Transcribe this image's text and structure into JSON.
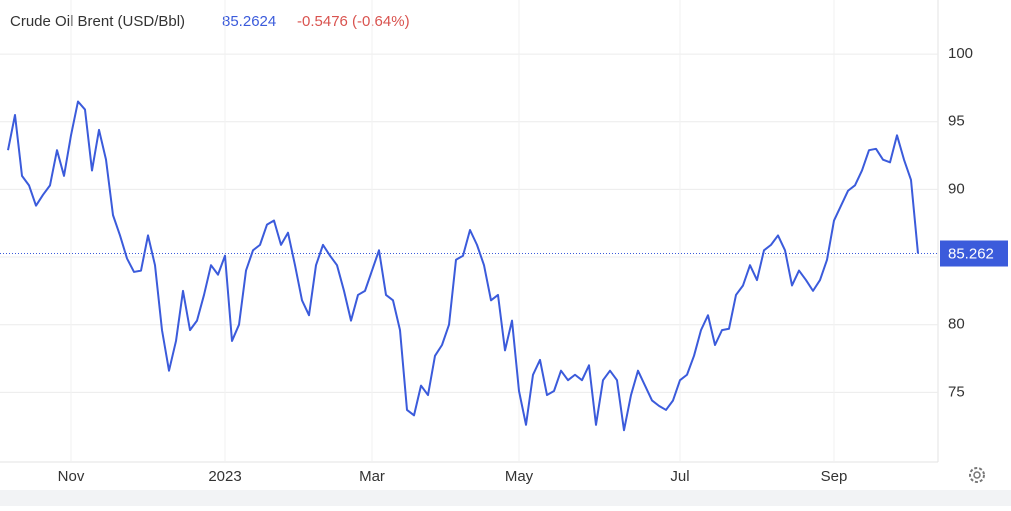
{
  "chart_data": {
    "type": "line",
    "title": "Crude Oil Brent (USD/Bbl)",
    "price": "85.2624",
    "change": "-0.5476 (-0.64%)",
    "last_label": "85.262",
    "categories": [
      null,
      null,
      null,
      null,
      null,
      null,
      null,
      null,
      null,
      "Nov",
      null,
      null,
      null,
      null,
      null,
      null,
      null,
      null,
      null,
      null,
      null,
      null,
      null,
      null,
      null,
      null,
      null,
      null,
      null,
      null,
      null,
      "2023",
      null,
      null,
      null,
      null,
      null,
      null,
      null,
      null,
      null,
      null,
      null,
      null,
      null,
      null,
      null,
      null,
      null,
      null,
      null,
      null,
      "Mar",
      null,
      null,
      null,
      null,
      null,
      null,
      null,
      null,
      null,
      null,
      null,
      null,
      null,
      null,
      null,
      null,
      null,
      null,
      null,
      null,
      "May",
      null,
      null,
      null,
      null,
      null,
      null,
      null,
      null,
      null,
      null,
      null,
      null,
      null,
      null,
      null,
      null,
      null,
      null,
      null,
      null,
      null,
      null,
      "Jul",
      null,
      null,
      null,
      null,
      null,
      null,
      null,
      null,
      null,
      null,
      null,
      null,
      null,
      null,
      null,
      null,
      null,
      null,
      null,
      null,
      null,
      "Sep",
      null,
      null,
      null,
      null,
      null,
      null,
      null,
      null,
      null,
      null,
      null,
      null
    ],
    "series": [
      {
        "name": "Crude Oil Brent (USD/Bbl)",
        "color": "#3b5bdb",
        "values": [
          92.9,
          95.5,
          91,
          90.3,
          88.8,
          89.6,
          90.3,
          92.9,
          91,
          94,
          96.5,
          95.9,
          91.4,
          94.4,
          92.2,
          88.1,
          86.6,
          84.9,
          83.9,
          84,
          86.6,
          84.4,
          79.6,
          76.6,
          78.8,
          82.5,
          79.6,
          80.3,
          82.2,
          84.4,
          83.7,
          85.1,
          78.8,
          80,
          84,
          85.5,
          85.9,
          87.4,
          87.7,
          85.9,
          86.8,
          84.4,
          81.8,
          80.7,
          84.4,
          85.9,
          85.1,
          84.4,
          82.5,
          80.3,
          82.2,
          82.5,
          84,
          85.5,
          82.2,
          81.8,
          79.6,
          73.7,
          73.3,
          75.5,
          74.8,
          77.7,
          78.5,
          80,
          84.8,
          85.1,
          87,
          85.9,
          84.4,
          81.8,
          82.2,
          78.1,
          80.3,
          75.1,
          72.6,
          76.3,
          77.4,
          74.8,
          75.1,
          76.6,
          75.9,
          76.3,
          75.9,
          77,
          72.6,
          75.9,
          76.6,
          75.9,
          72.2,
          74.8,
          76.6,
          75.5,
          74.4,
          74,
          73.7,
          74.4,
          75.9,
          76.3,
          77.7,
          79.6,
          80.7,
          78.5,
          79.6,
          79.7,
          82.2,
          82.9,
          84.4,
          83.3,
          85.5,
          85.9,
          86.6,
          85.5,
          82.9,
          84,
          83.3,
          82.5,
          83.3,
          84.8,
          87.7,
          88.8,
          89.9,
          90.3,
          91.4,
          92.9,
          93,
          92.2,
          92,
          94,
          92.2,
          90.7,
          85.2624
        ]
      }
    ],
    "ylim": [
      70,
      104
    ],
    "yticks": [
      75,
      80,
      85,
      90,
      95,
      100
    ],
    "grid": true
  }
}
